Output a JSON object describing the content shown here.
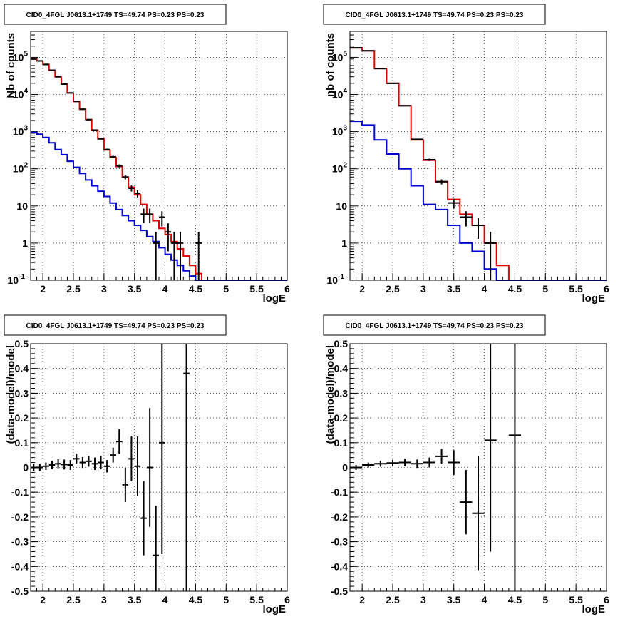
{
  "chart_data": [
    {
      "type": "line",
      "title": "CID0_4FGL J0613.1+1749 TS=49.74 PS=0.23 PS=0.23",
      "xlabel": "logE",
      "ylabel": "Nb of counts",
      "xlim": [
        1.8,
        6.0
      ],
      "ylim": [
        0.1,
        500000
      ],
      "yscale": "log",
      "grid": true,
      "x_ticks": [
        "2",
        "2.5",
        "3",
        "3.5",
        "4",
        "4.5",
        "5",
        "5.5",
        "6"
      ],
      "y_ticks": [
        {
          "base": "10",
          "exp": "-1"
        },
        {
          "base": "1",
          "exp": ""
        },
        {
          "base": "10",
          "exp": ""
        },
        {
          "base": "10",
          "exp": "2"
        },
        {
          "base": "10",
          "exp": "3"
        },
        {
          "base": "10",
          "exp": "4"
        },
        {
          "base": "10",
          "exp": "5"
        }
      ],
      "bin_edges": [
        1.8,
        1.9,
        2.0,
        2.1,
        2.2,
        2.3,
        2.4,
        2.5,
        2.6,
        2.7,
        2.8,
        2.9,
        3.0,
        3.1,
        3.2,
        3.3,
        3.4,
        3.5,
        3.6,
        3.7,
        3.8,
        3.9,
        4.0,
        4.1,
        4.2,
        4.3,
        4.4,
        4.5,
        4.6,
        4.7,
        4.8,
        4.9,
        5.0,
        5.1,
        5.2,
        5.3,
        5.4,
        5.5,
        5.6,
        5.7,
        5.8,
        5.9,
        6.0
      ],
      "series": [
        {
          "color": "#e00000",
          "style": "step",
          "values": [
            90000,
            80000,
            65000,
            45000,
            30000,
            19000,
            11000,
            6500,
            4000,
            2100,
            1100,
            640,
            320,
            200,
            115,
            60,
            32,
            20,
            11,
            6,
            4,
            2.5,
            1.7,
            1.1,
            0.7,
            0.45,
            0.25,
            0.15,
            0.1,
            0.1,
            0.1,
            0.1,
            0.1,
            0.1,
            0.1,
            0.1,
            0.1,
            0.1,
            0.1,
            0.1,
            0.1,
            0.1
          ]
        },
        {
          "color": "#0000d0",
          "style": "step",
          "values": [
            950,
            850,
            700,
            500,
            330,
            240,
            160,
            110,
            75,
            50,
            35,
            25,
            18,
            12,
            8,
            5.5,
            4,
            3,
            2.2,
            1.5,
            1.1,
            0.75,
            0.5,
            0.35,
            0.25,
            0.18,
            0.13,
            0.1,
            0.1,
            0.1,
            0.1,
            0.1,
            0.1,
            0.1,
            0.1,
            0.1,
            0.1,
            0.1,
            0.1,
            0.1,
            0.1,
            0.1
          ]
        }
      ],
      "points": [
        {
          "x": 1.85,
          "y": 90000,
          "err": 300
        },
        {
          "x": 1.95,
          "y": 80000,
          "err": 280
        },
        {
          "x": 2.05,
          "y": 64000,
          "err": 250
        },
        {
          "x": 2.15,
          "y": 45000,
          "err": 210
        },
        {
          "x": 2.25,
          "y": 30000,
          "err": 170
        },
        {
          "x": 2.35,
          "y": 19000,
          "err": 140
        },
        {
          "x": 2.45,
          "y": 11000,
          "err": 105
        },
        {
          "x": 2.55,
          "y": 6500,
          "err": 80
        },
        {
          "x": 2.65,
          "y": 4000,
          "err": 63
        },
        {
          "x": 2.75,
          "y": 2100,
          "err": 46
        },
        {
          "x": 2.85,
          "y": 1100,
          "err": 33
        },
        {
          "x": 2.95,
          "y": 640,
          "err": 25
        },
        {
          "x": 3.05,
          "y": 330,
          "err": 18
        },
        {
          "x": 3.15,
          "y": 210,
          "err": 14
        },
        {
          "x": 3.25,
          "y": 120,
          "err": 11
        },
        {
          "x": 3.35,
          "y": 60,
          "err": 8
        },
        {
          "x": 3.45,
          "y": 30,
          "err": 5.5
        },
        {
          "x": 3.55,
          "y": 22,
          "err": 5
        },
        {
          "x": 3.65,
          "y": 6,
          "err": 2.5
        },
        {
          "x": 3.75,
          "y": 6,
          "err": 2.5
        },
        {
          "x": 3.85,
          "y": 1,
          "err": 1
        },
        {
          "x": 3.95,
          "y": 5,
          "err": 2.2
        },
        {
          "x": 4.05,
          "y": 2,
          "err": 1.4
        },
        {
          "x": 4.15,
          "y": 1,
          "err": 1
        },
        {
          "x": 4.25,
          "y": 1,
          "err": 1
        },
        {
          "x": 4.55,
          "y": 1,
          "err": 1
        }
      ]
    },
    {
      "type": "line",
      "title": "CID0_4FGL J0613.1+1749 TS=49.74 PS=0.23 PS=0.23",
      "xlabel": "logE",
      "ylabel": "nb of counts",
      "xlim": [
        1.8,
        6.0
      ],
      "ylim": [
        0.1,
        500000
      ],
      "yscale": "log",
      "grid": true,
      "x_ticks": [
        "2",
        "2.5",
        "3",
        "3.5",
        "4",
        "4.5",
        "5",
        "5.5",
        "6"
      ],
      "y_ticks": [
        {
          "base": "10",
          "exp": "-1"
        },
        {
          "base": "1",
          "exp": ""
        },
        {
          "base": "10",
          "exp": ""
        },
        {
          "base": "10",
          "exp": "2"
        },
        {
          "base": "10",
          "exp": "3"
        },
        {
          "base": "10",
          "exp": "4"
        },
        {
          "base": "10",
          "exp": "5"
        }
      ],
      "bin_edges": [
        1.8,
        2.0,
        2.2,
        2.4,
        2.6,
        2.8,
        3.0,
        3.2,
        3.4,
        3.6,
        3.8,
        4.0,
        4.2,
        4.4,
        4.6,
        4.8,
        5.0,
        5.2,
        5.4,
        5.6,
        5.8,
        6.0
      ],
      "series": [
        {
          "color": "#e00000",
          "style": "step",
          "values": [
            180000,
            150000,
            50000,
            20000,
            5000,
            600,
            170,
            45,
            15,
            6,
            3,
            1,
            0.25,
            0.1,
            0.1,
            0.1,
            0.1,
            0.1,
            0.1,
            0.1,
            0.1
          ]
        },
        {
          "color": "#0000d0",
          "style": "step",
          "values": [
            1900,
            1500,
            600,
            250,
            100,
            35,
            11,
            8,
            3,
            1,
            0.6,
            0.2,
            0.1,
            0.1,
            0.1,
            0.1,
            0.1,
            0.1,
            0.1,
            0.1,
            0.1
          ]
        }
      ],
      "points": [
        {
          "x": 1.9,
          "y": 180000,
          "err": 420
        },
        {
          "x": 2.1,
          "y": 150000,
          "err": 390
        },
        {
          "x": 2.3,
          "y": 50000,
          "err": 220
        },
        {
          "x": 2.5,
          "y": 20000,
          "err": 140
        },
        {
          "x": 2.7,
          "y": 5000,
          "err": 70
        },
        {
          "x": 2.9,
          "y": 620,
          "err": 25
        },
        {
          "x": 3.1,
          "y": 175,
          "err": 13
        },
        {
          "x": 3.3,
          "y": 45,
          "err": 7
        },
        {
          "x": 3.5,
          "y": 12,
          "err": 3.5
        },
        {
          "x": 3.7,
          "y": 5,
          "err": 2.2
        },
        {
          "x": 3.9,
          "y": 3,
          "err": 1.7
        },
        {
          "x": 4.1,
          "y": 1,
          "err": 1
        }
      ]
    },
    {
      "type": "scatter",
      "title": "CID0_4FGL J0613.1+1749 TS=49.74 PS=0.23 PS=0.23",
      "xlabel": "logE",
      "ylabel": "(data-model)/model",
      "xlim": [
        1.8,
        6.0
      ],
      "ylim": [
        -0.5,
        0.5
      ],
      "yscale": "linear",
      "grid": true,
      "x_ticks": [
        "2",
        "2.5",
        "3",
        "3.5",
        "4",
        "4.5",
        "5",
        "5.5",
        "6"
      ],
      "y_ticks": [
        "-0.5",
        "-0.4",
        "-0.3",
        "-0.2",
        "-0.1",
        "0",
        "0.1",
        "0.2",
        "0.3",
        "0.4",
        "0.5"
      ],
      "bin_width": 0.1,
      "points": [
        {
          "x": 1.85,
          "y": 0.0,
          "err": 0.015
        },
        {
          "x": 1.95,
          "y": 0.0,
          "err": 0.015
        },
        {
          "x": 2.05,
          "y": 0.005,
          "err": 0.015
        },
        {
          "x": 2.15,
          "y": 0.01,
          "err": 0.017
        },
        {
          "x": 2.25,
          "y": 0.015,
          "err": 0.018
        },
        {
          "x": 2.35,
          "y": 0.012,
          "err": 0.02
        },
        {
          "x": 2.45,
          "y": 0.01,
          "err": 0.02
        },
        {
          "x": 2.55,
          "y": 0.035,
          "err": 0.02
        },
        {
          "x": 2.65,
          "y": 0.02,
          "err": 0.022
        },
        {
          "x": 2.75,
          "y": 0.025,
          "err": 0.022
        },
        {
          "x": 2.85,
          "y": 0.015,
          "err": 0.025
        },
        {
          "x": 2.95,
          "y": 0.02,
          "err": 0.027
        },
        {
          "x": 3.05,
          "y": 0.005,
          "err": 0.025
        },
        {
          "x": 3.15,
          "y": 0.05,
          "err": 0.03
        },
        {
          "x": 3.25,
          "y": 0.105,
          "err": 0.05
        },
        {
          "x": 3.35,
          "y": -0.07,
          "err": 0.07
        },
        {
          "x": 3.45,
          "y": 0.035,
          "err": 0.09
        },
        {
          "x": 3.55,
          "y": 0.005,
          "err": 0.12
        },
        {
          "x": 3.65,
          "y": -0.205,
          "err": 0.15
        },
        {
          "x": 3.75,
          "y": 0.0,
          "err": 0.24
        },
        {
          "x": 3.85,
          "y": -0.355,
          "err": 0.2
        },
        {
          "x": 3.95,
          "y": 0.1,
          "err": 0.45
        },
        {
          "x": 4.35,
          "y": 0.38,
          "err": 1.0
        }
      ]
    },
    {
      "type": "scatter",
      "title": "CID0_4FGL J0613.1+1749 TS=49.74 PS=0.23 PS=0.23",
      "xlabel": "logE",
      "ylabel": "(data-model)/model",
      "xlim": [
        1.8,
        6.0
      ],
      "ylim": [
        -0.5,
        0.5
      ],
      "yscale": "linear",
      "grid": true,
      "x_ticks": [
        "2",
        "2.5",
        "3",
        "3.5",
        "4",
        "4.5",
        "5",
        "5.5",
        "6"
      ],
      "y_ticks": [
        "-0.5",
        "-0.4",
        "-0.3",
        "-0.2",
        "-0.1",
        "0",
        "0.1",
        "0.2",
        "0.3",
        "0.4",
        "0.5"
      ],
      "bin_width": 0.2,
      "points": [
        {
          "x": 1.9,
          "y": 0.0,
          "err": 0.01
        },
        {
          "x": 2.1,
          "y": 0.01,
          "err": 0.01
        },
        {
          "x": 2.3,
          "y": 0.015,
          "err": 0.012
        },
        {
          "x": 2.5,
          "y": 0.018,
          "err": 0.013
        },
        {
          "x": 2.7,
          "y": 0.02,
          "err": 0.015
        },
        {
          "x": 2.9,
          "y": 0.015,
          "err": 0.017
        },
        {
          "x": 3.1,
          "y": 0.02,
          "err": 0.02
        },
        {
          "x": 3.3,
          "y": 0.045,
          "err": 0.03
        },
        {
          "x": 3.5,
          "y": 0.02,
          "err": 0.05
        },
        {
          "x": 3.7,
          "y": -0.14,
          "err": 0.13
        },
        {
          "x": 3.9,
          "y": -0.185,
          "err": 0.23
        },
        {
          "x": 4.1,
          "y": 0.11,
          "err": 0.45
        },
        {
          "x": 4.5,
          "y": 0.13,
          "err": 1.0
        }
      ]
    }
  ]
}
